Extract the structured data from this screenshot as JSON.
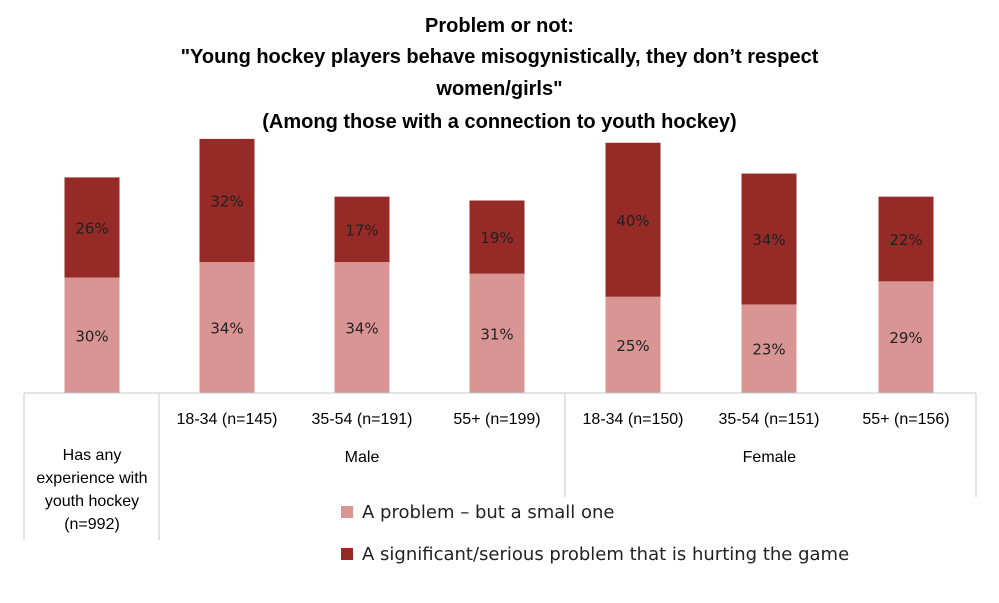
{
  "chart_data": {
    "type": "bar",
    "stacked": true,
    "title_lines": [
      "Problem or not:",
      "\"Young hockey players behave misogynistically, they don’t respect",
      "women/girls\"",
      "(Among those with a connection to youth hockey)"
    ],
    "categories": [
      "Has any experience with youth hockey (n=992)",
      "18-34 (n=145)",
      "35-54 (n=191)",
      "55+ (n=199)",
      "18-34 (n=150)",
      "35-54 (n=151)",
      "55+ (n=156)"
    ],
    "category_lines": [
      [
        "Has any",
        "experience with",
        "youth hockey",
        "(n=992)"
      ],
      [
        "18-34 (n=145)"
      ],
      [
        "35-54 (n=191)"
      ],
      [
        "55+ (n=199)"
      ],
      [
        "18-34 (n=150)"
      ],
      [
        "35-54 (n=151)"
      ],
      [
        "55+ (n=156)"
      ]
    ],
    "groups": [
      {
        "label": "Male",
        "categories": [
          1,
          2,
          3
        ]
      },
      {
        "label": "Female",
        "categories": [
          4,
          5,
          6
        ]
      }
    ],
    "series": [
      {
        "name": "A problem – but a small one",
        "color": "#d99594",
        "values": [
          30,
          34,
          34,
          31,
          25,
          23,
          29
        ],
        "labels": [
          "30%",
          "34%",
          "34%",
          "31%",
          "25%",
          "23%",
          "29%"
        ]
      },
      {
        "name": "A significant/serious problem that is hurting the game",
        "color": "#962a26",
        "values": [
          26,
          32,
          17,
          19,
          40,
          34,
          22
        ],
        "labels": [
          "26%",
          "32%",
          "17%",
          "19%",
          "40%",
          "34%",
          "22%"
        ]
      }
    ],
    "ylim": [
      0,
      70
    ],
    "grid": false,
    "legend_position": "bottom-right"
  }
}
